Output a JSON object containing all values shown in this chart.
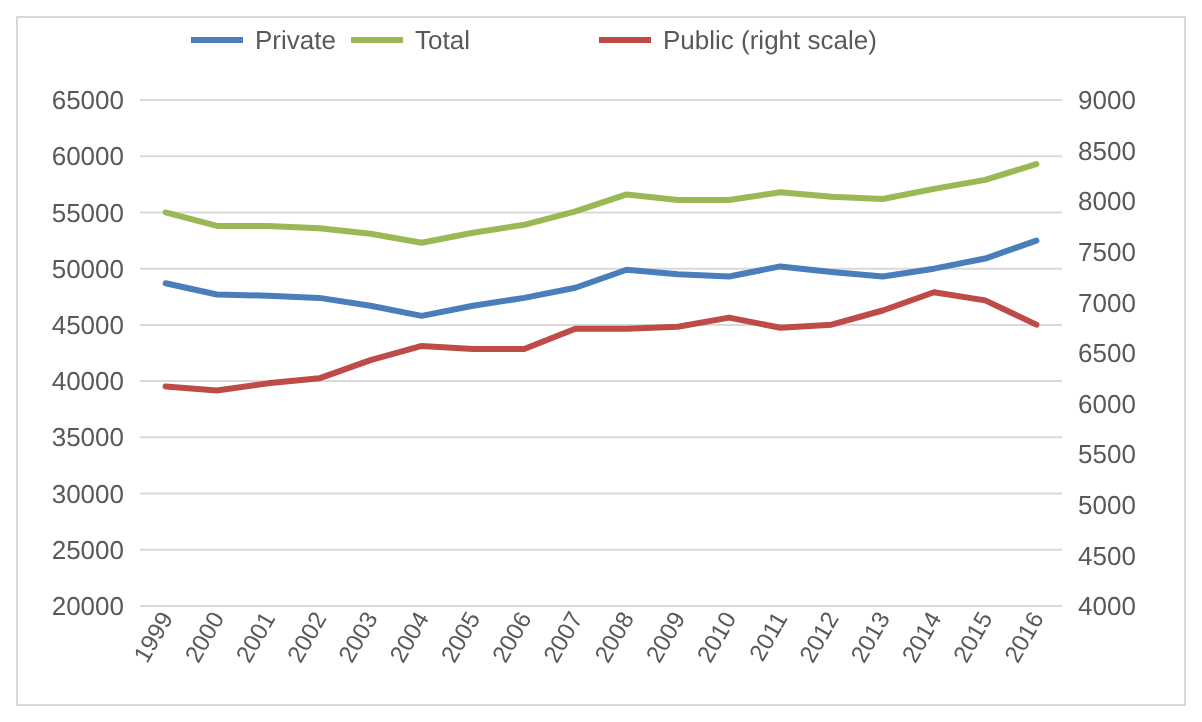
{
  "chart_data": {
    "type": "line",
    "categories": [
      "1999",
      "2000",
      "2001",
      "2002",
      "2003",
      "2004",
      "2005",
      "2006",
      "2007",
      "2008",
      "2009",
      "2010",
      "2011",
      "2012",
      "2013",
      "2014",
      "2015",
      "2016"
    ],
    "series": [
      {
        "name": "Private",
        "color": "#4a7ebb",
        "values": [
          48700,
          47700,
          47600,
          47400,
          46700,
          45800,
          46700,
          47400,
          48300,
          49900,
          49500,
          49300,
          50200,
          49700,
          49300,
          50000,
          50900,
          52500
        ]
      },
      {
        "name": "Total",
        "color": "#98b954",
        "values": [
          55000,
          53800,
          53800,
          53600,
          53100,
          52300,
          53200,
          53900,
          55100,
          56600,
          56100,
          56100,
          56800,
          56400,
          56200,
          57100,
          57900,
          59300
        ]
      },
      {
        "name": "Public (right scale)",
        "color": "#be4b48",
        "axis": "y2",
        "values": [
          6170,
          6130,
          6200,
          6250,
          6430,
          6570,
          6540,
          6540,
          6740,
          6740,
          6760,
          6850,
          6750,
          6780,
          6920,
          7100,
          7020,
          6780
        ]
      }
    ],
    "ylim": [
      20000,
      65000
    ],
    "yticks": [
      20000,
      25000,
      30000,
      35000,
      40000,
      45000,
      50000,
      55000,
      60000,
      65000
    ],
    "y2lim": [
      4000,
      9000
    ],
    "y2ticks": [
      4000,
      4500,
      5000,
      5500,
      6000,
      6500,
      7000,
      7500,
      8000,
      8500,
      9000
    ],
    "grid": "y",
    "legend": "top",
    "marker": "none",
    "line_style": "solid"
  }
}
